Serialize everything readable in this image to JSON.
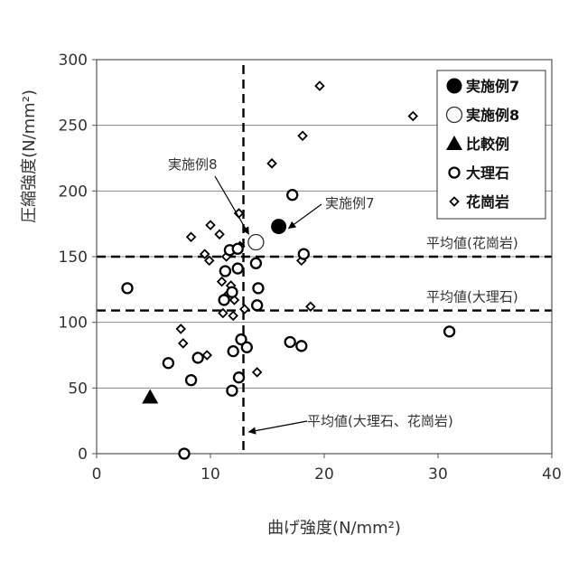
{
  "chart_data": {
    "type": "scatter",
    "xlabel": "曲げ強度(N/mm²)",
    "ylabel": "圧縮強度(N/mm²)",
    "xlim": [
      0,
      40
    ],
    "ylim": [
      0,
      300
    ],
    "x_ticks": [
      0,
      10,
      20,
      30,
      40
    ],
    "y_ticks": [
      0,
      50,
      100,
      150,
      200,
      250,
      300
    ],
    "x_tick_labels": [
      "0",
      "10",
      "20",
      "30",
      "40"
    ],
    "y_tick_labels": [
      "0",
      "50",
      "100",
      "150",
      "200",
      "250",
      "300"
    ],
    "grid": "horizontal",
    "legend_placement": "top-right",
    "series": [
      {
        "name": "実施例7",
        "marker": "filled-circle-large",
        "color": "#000000",
        "points": [
          [
            16.0,
            173
          ]
        ]
      },
      {
        "name": "実施例8",
        "marker": "open-circle-large",
        "color": "#000000",
        "points": [
          [
            14.0,
            161
          ]
        ]
      },
      {
        "name": "比較例",
        "marker": "filled-triangle",
        "color": "#000000",
        "points": [
          [
            4.7,
            43
          ]
        ]
      },
      {
        "name": "大理石",
        "marker": "open-circle",
        "color": "#000000",
        "points": [
          [
            2.7,
            126
          ],
          [
            7.7,
            0
          ],
          [
            6.3,
            69
          ],
          [
            8.3,
            56
          ],
          [
            8.9,
            73
          ],
          [
            11.3,
            139
          ],
          [
            11.2,
            117
          ],
          [
            11.9,
            123
          ],
          [
            11.7,
            155
          ],
          [
            12.4,
            156
          ],
          [
            12.4,
            141
          ],
          [
            12.0,
            78
          ],
          [
            12.7,
            87
          ],
          [
            13.2,
            81
          ],
          [
            12.5,
            58
          ],
          [
            11.9,
            48
          ],
          [
            14.2,
            126
          ],
          [
            14.1,
            113
          ],
          [
            14.0,
            145
          ],
          [
            17.2,
            197
          ],
          [
            18.2,
            152
          ],
          [
            17.0,
            85
          ],
          [
            18.0,
            82
          ],
          [
            31.0,
            93
          ]
        ]
      },
      {
        "name": "花崗岩",
        "marker": "open-diamond",
        "color": "#000000",
        "points": [
          [
            8.3,
            165
          ],
          [
            10.0,
            174
          ],
          [
            10.8,
            167
          ],
          [
            9.5,
            152
          ],
          [
            9.9,
            147
          ],
          [
            12.5,
            183
          ],
          [
            12.6,
            158
          ],
          [
            11.4,
            150
          ],
          [
            11.0,
            131
          ],
          [
            11.8,
            128
          ],
          [
            11.4,
            120
          ],
          [
            12.1,
            117
          ],
          [
            11.1,
            107
          ],
          [
            12.0,
            105
          ],
          [
            13.0,
            110
          ],
          [
            7.4,
            95
          ],
          [
            7.6,
            84
          ],
          [
            9.7,
            75
          ],
          [
            14.1,
            62
          ],
          [
            15.4,
            221
          ],
          [
            18.1,
            242
          ],
          [
            19.6,
            280
          ],
          [
            27.8,
            257
          ],
          [
            18.0,
            147
          ],
          [
            18.8,
            112
          ]
        ]
      }
    ],
    "reference_lines": [
      {
        "orientation": "horizontal",
        "value": 150,
        "label": "平均値(花崗岩)"
      },
      {
        "orientation": "horizontal",
        "value": 109,
        "label": "平均値(大理石)"
      },
      {
        "orientation": "vertical",
        "value": 12.9,
        "label": "平均値(大理石、花崗岩)"
      }
    ],
    "annotations": [
      {
        "text": "実施例8",
        "points_to": [
          14.0,
          161
        ]
      },
      {
        "text": "実施例7",
        "points_to": [
          16.0,
          173
        ]
      }
    ]
  }
}
